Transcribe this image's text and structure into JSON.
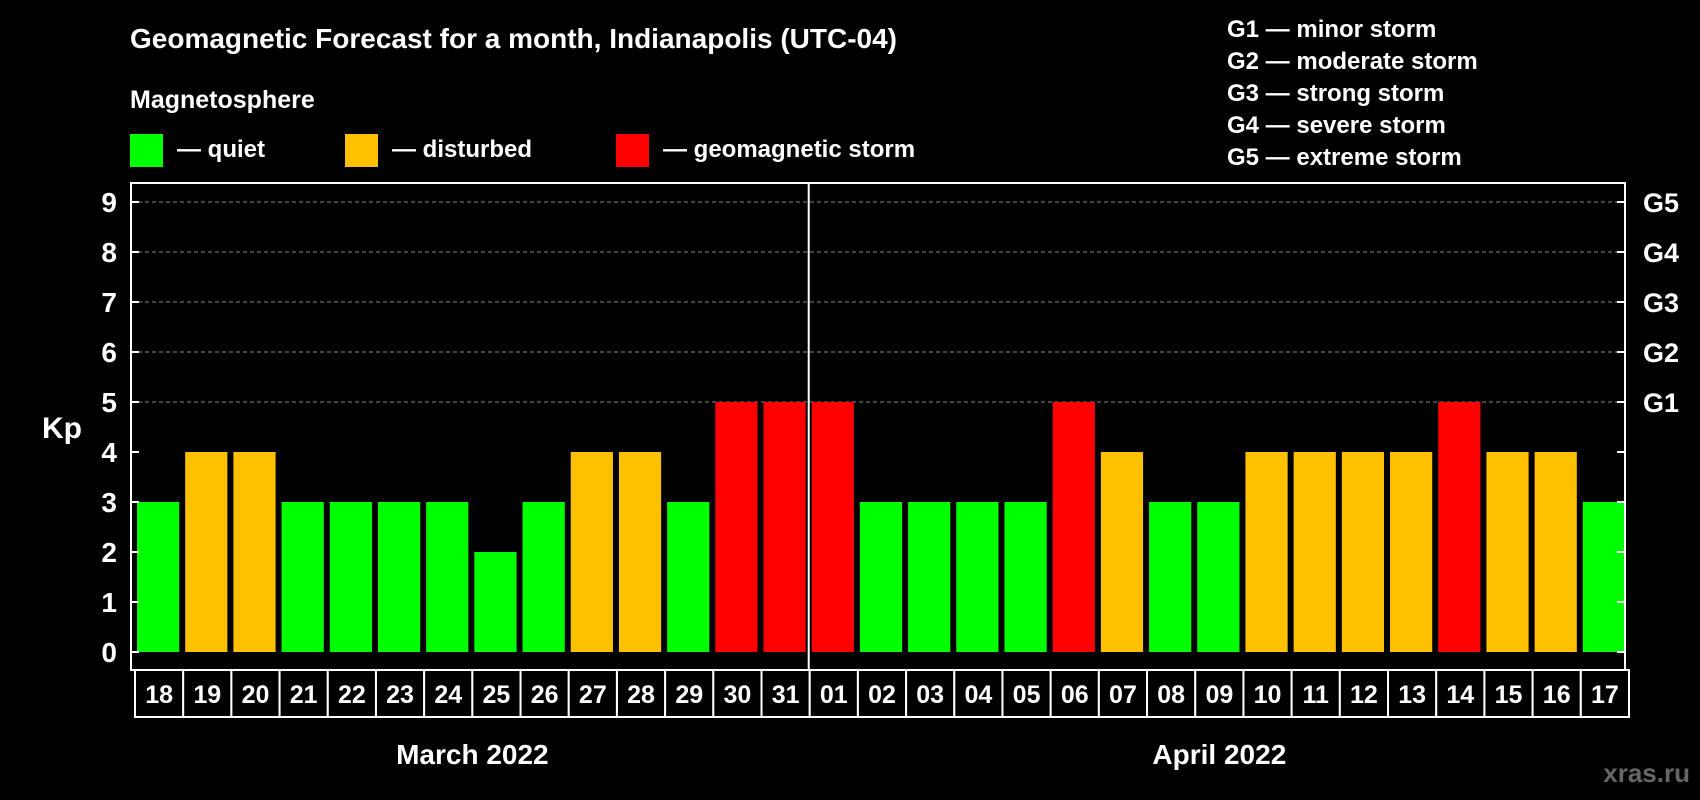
{
  "chart_data": {
    "type": "bar",
    "title": "Geomagnetic Forecast for a month, Indianapolis (UTC-04)",
    "ylabel": "Kp",
    "ylim": [
      0,
      9
    ],
    "yticks": [
      "0",
      "1",
      "2",
      "3",
      "4",
      "5",
      "6",
      "7",
      "8",
      "9"
    ],
    "legend_title": "Magnetosphere",
    "legend": [
      {
        "label": "— quiet",
        "color": "#00ff00"
      },
      {
        "label": "— disturbed",
        "color": "#ffc000"
      },
      {
        "label": "— geomagnetic storm",
        "color": "#ff0000"
      }
    ],
    "storm_scale": [
      "G1 — minor storm",
      "G2 — moderate storm",
      "G3 — strong storm",
      "G4 — severe storm",
      "G5 — extreme storm"
    ],
    "right_ticks": [
      {
        "kp": 5,
        "label": "G1"
      },
      {
        "kp": 6,
        "label": "G2"
      },
      {
        "kp": 7,
        "label": "G3"
      },
      {
        "kp": 8,
        "label": "G4"
      },
      {
        "kp": 9,
        "label": "G5"
      }
    ],
    "categories": [
      "18",
      "19",
      "20",
      "21",
      "22",
      "23",
      "24",
      "25",
      "26",
      "27",
      "28",
      "29",
      "30",
      "31",
      "01",
      "02",
      "03",
      "04",
      "05",
      "06",
      "07",
      "08",
      "09",
      "10",
      "11",
      "12",
      "13",
      "14",
      "15",
      "16",
      "17"
    ],
    "values": [
      3,
      4,
      4,
      3,
      3,
      3,
      3,
      2,
      3,
      4,
      4,
      3,
      5,
      5,
      5,
      3,
      3,
      3,
      3,
      5,
      4,
      3,
      3,
      4,
      4,
      4,
      4,
      5,
      4,
      4,
      3
    ],
    "month_labels": [
      {
        "label": "March 2022",
        "from": 0,
        "to": 13
      },
      {
        "label": "April 2022",
        "from": 14,
        "to": 30
      }
    ],
    "month_divider_after": 13,
    "watermark": "xras.ru",
    "colors": {
      "quiet": "#00ff00",
      "disturbed": "#ffc000",
      "storm": "#ff0000"
    }
  }
}
